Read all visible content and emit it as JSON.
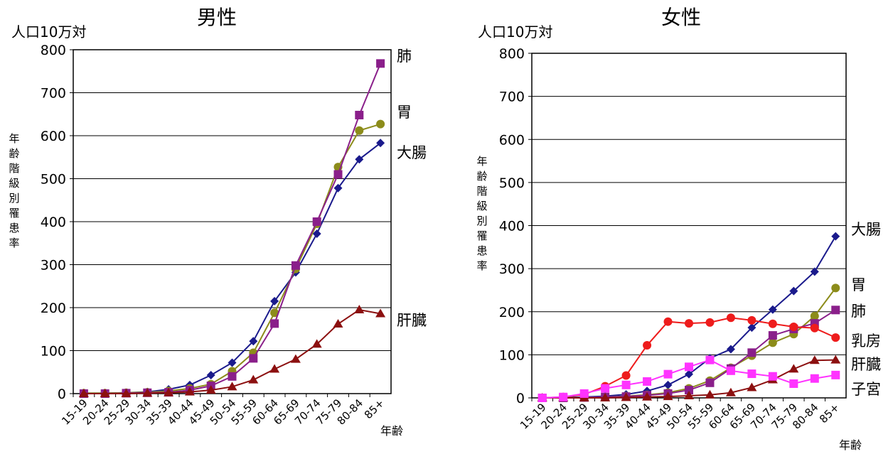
{
  "chart_data": [
    {
      "type": "line",
      "title": "男性",
      "ylabel_top": "人口10万対",
      "ylabel": "年齢階級別罹患率",
      "xlabel": "年齢",
      "ylim": [
        0,
        800
      ],
      "yticks": [
        0,
        100,
        200,
        300,
        400,
        500,
        600,
        700,
        800
      ],
      "grid": true,
      "categories": [
        "15-19",
        "20-24",
        "25-29",
        "30-34",
        "35-39",
        "40-44",
        "45-49",
        "50-54",
        "55-59",
        "60-64",
        "65-69",
        "70-74",
        "75-79",
        "80-84",
        "85+"
      ],
      "series": [
        {
          "name": "大腸",
          "color": "#1a1a8c",
          "marker": "diamond",
          "values": [
            1,
            1,
            2,
            4,
            10,
            20,
            43,
            72,
            122,
            215,
            282,
            372,
            478,
            545,
            583
          ]
        },
        {
          "name": "胃",
          "color": "#8c8c1a",
          "marker": "circle",
          "values": [
            1,
            1,
            2,
            3,
            6,
            12,
            22,
            52,
            95,
            188,
            290,
            395,
            527,
            612,
            627
          ]
        },
        {
          "name": "肺",
          "color": "#8a1f8a",
          "marker": "square",
          "values": [
            0,
            0,
            1,
            2,
            3,
            8,
            18,
            40,
            82,
            163,
            298,
            400,
            510,
            648,
            768
          ]
        },
        {
          "name": "肝臓",
          "color": "#8c1010",
          "marker": "triangle",
          "values": [
            0,
            0,
            0,
            1,
            2,
            4,
            8,
            16,
            32,
            57,
            80,
            115,
            162,
            195,
            186
          ]
        }
      ],
      "labels": [
        {
          "text": "肺",
          "series": "肺"
        },
        {
          "text": "胃",
          "series": "胃"
        },
        {
          "text": "大腸",
          "series": "大腸"
        },
        {
          "text": "肝臓",
          "series": "肝臓"
        }
      ]
    },
    {
      "type": "line",
      "title": "女性",
      "ylabel_top": "人口10万対",
      "ylabel": "年齢階級別罹患率",
      "xlabel": "年齢",
      "ylim": [
        0,
        800
      ],
      "yticks": [
        0,
        100,
        200,
        300,
        400,
        500,
        600,
        700,
        800
      ],
      "grid": true,
      "categories": [
        "15-19",
        "20-24",
        "25-29",
        "30-34",
        "35-39",
        "40-44",
        "45-49",
        "50-54",
        "55-59",
        "60-64",
        "65-69",
        "70-74",
        "75-79",
        "80-84",
        "85+"
      ],
      "series": [
        {
          "name": "大腸",
          "color": "#1a1a8c",
          "marker": "diamond",
          "values": [
            0,
            1,
            2,
            4,
            8,
            16,
            30,
            55,
            92,
            113,
            163,
            205,
            248,
            293,
            375
          ]
        },
        {
          "name": "胃",
          "color": "#8c8c1a",
          "marker": "circle",
          "values": [
            0,
            0,
            1,
            2,
            4,
            7,
            12,
            22,
            40,
            70,
            98,
            128,
            148,
            190,
            255
          ]
        },
        {
          "name": "肺",
          "color": "#8a1f8a",
          "marker": "square",
          "values": [
            0,
            0,
            1,
            2,
            3,
            6,
            10,
            18,
            35,
            68,
            105,
            145,
            160,
            173,
            204
          ]
        },
        {
          "name": "乳房",
          "color": "#ee1c1c",
          "marker": "circle",
          "values": [
            0,
            2,
            8,
            27,
            52,
            122,
            177,
            173,
            175,
            186,
            180,
            172,
            165,
            162,
            140
          ]
        },
        {
          "name": "肝臓",
          "color": "#8c1010",
          "marker": "triangle",
          "values": [
            0,
            0,
            0,
            0,
            1,
            2,
            3,
            5,
            7,
            12,
            24,
            42,
            67,
            87,
            88
          ]
        },
        {
          "name": "子宮",
          "color": "#ff33ff",
          "marker": "square",
          "values": [
            0,
            2,
            10,
            22,
            30,
            38,
            55,
            72,
            88,
            63,
            56,
            50,
            33,
            45,
            53
          ]
        }
      ],
      "labels": [
        {
          "text": "大腸",
          "series": "大腸"
        },
        {
          "text": "胃",
          "series": "胃"
        },
        {
          "text": "肺",
          "series": "肺"
        },
        {
          "text": "乳房",
          "series": "乳房"
        },
        {
          "text": "肝臓",
          "series": "肝臓"
        },
        {
          "text": "子宮",
          "series": "子宮"
        }
      ]
    }
  ]
}
